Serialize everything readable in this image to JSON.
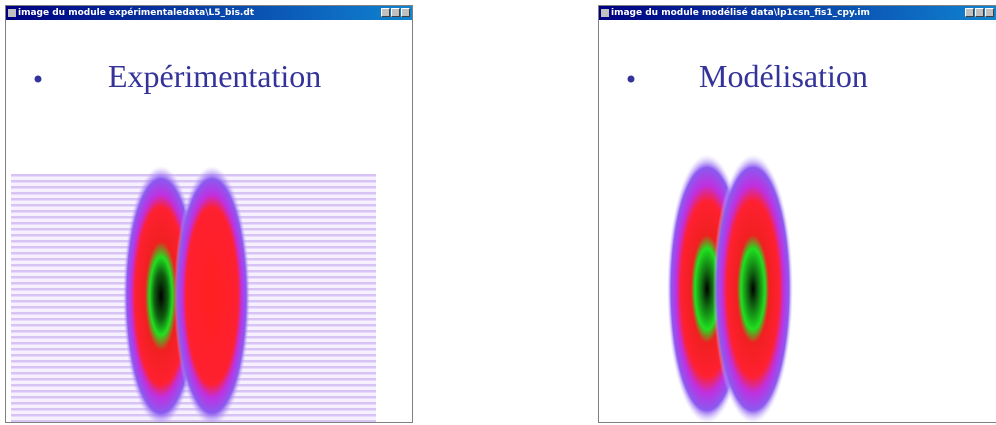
{
  "windows": [
    {
      "title": "image du module expérimentaledata\\L5_bis.dt",
      "label": "Expérimentation"
    },
    {
      "title": "image du module modélisé data\\lp1csn_fis1_cpy.im",
      "label": "Modélisation"
    }
  ]
}
